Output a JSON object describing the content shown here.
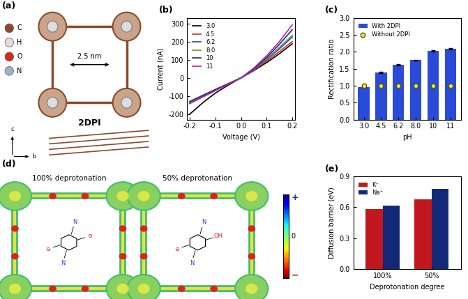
{
  "chart_data": [
    {
      "panel": "(b)",
      "type": "line",
      "x_label": "Voltage (V)",
      "y_label": "Current (nA)",
      "x": [
        -0.2,
        -0.15,
        -0.1,
        -0.05,
        0.0,
        0.05,
        0.1,
        0.15,
        0.2
      ],
      "series": [
        {
          "name": "3.0",
          "color": "#000000",
          "values": [
            -200,
            -138,
            -84,
            -40,
            0,
            40,
            84,
            133,
            188
          ]
        },
        {
          "name": "4.5",
          "color": "#e02020",
          "values": [
            -140,
            -105,
            -70,
            -35,
            0,
            42,
            92,
            145,
            200
          ]
        },
        {
          "name": "6.2",
          "color": "#2040e0",
          "values": [
            -138,
            -103,
            -68,
            -34,
            0,
            45,
            100,
            160,
            225
          ]
        },
        {
          "name": "8.0",
          "color": "#6a9a20",
          "values": [
            -135,
            -100,
            -66,
            -33,
            0,
            47,
            104,
            168,
            235
          ]
        },
        {
          "name": "10",
          "color": "#1a237e",
          "values": [
            -130,
            -97,
            -64,
            -32,
            0,
            50,
            112,
            185,
            265
          ]
        },
        {
          "name": "11",
          "color": "#b020b0",
          "values": [
            -142,
            -106,
            -70,
            -34,
            0,
            54,
            122,
            200,
            292
          ]
        }
      ],
      "xlim": [
        -0.21,
        0.21
      ],
      "xticks": [
        -0.2,
        -0.1,
        0.0,
        0.1,
        0.2
      ],
      "ylim": [
        -230,
        330
      ],
      "yticks": [
        -200,
        -100,
        0,
        100,
        200,
        300
      ],
      "legend": "upper left"
    },
    {
      "panel": "(c)",
      "type": "bar",
      "x_label": "pH",
      "y_label": "Rectification ratio",
      "categories": [
        "3.0",
        "4.5",
        "6.2",
        "8.0",
        "10",
        "11"
      ],
      "series": [
        {
          "name": "With 2DPI",
          "type": "bar",
          "color": "#2a4bd7",
          "values": [
            0.95,
            1.39,
            1.61,
            1.76,
            2.02,
            2.08
          ],
          "errors": [
            0.0,
            0.02,
            0.02,
            0.01,
            0.02,
            0.02
          ]
        },
        {
          "name": "Without 2DPI",
          "type": "scatter",
          "color": "#f0e63c",
          "marker": "o",
          "values": [
            1.0,
            1.0,
            1.0,
            1.0,
            1.0,
            1.0
          ]
        }
      ],
      "ylim": [
        0.0,
        3.0
      ],
      "yticks": [
        0.0,
        0.5,
        1.0,
        1.5,
        2.0,
        2.5,
        3.0
      ],
      "legend": "upper left"
    },
    {
      "panel": "(e)",
      "type": "bar",
      "x_label": "Deprotonation degree",
      "y_label": "Diffusion barrier (eV)",
      "categories": [
        "100%",
        "50%"
      ],
      "series": [
        {
          "name": "K⁺",
          "type": "bar",
          "color": "#c0181e",
          "values": [
            0.585,
            0.675
          ]
        },
        {
          "name": "Na⁺",
          "type": "bar",
          "color": "#14287a",
          "values": [
            0.615,
            0.78
          ]
        }
      ],
      "ylim": [
        0.0,
        0.9
      ],
      "yticks": [
        0.0,
        0.3,
        0.6,
        0.9
      ],
      "legend": "upper left"
    }
  ],
  "diagrams": {
    "a": {
      "panel": "(a)",
      "title": "2DPI",
      "distance": "2.5 nm",
      "atoms": [
        {
          "label": "C",
          "color": "#8b4a2b"
        },
        {
          "label": "H",
          "color": "#e6dada"
        },
        {
          "label": "O",
          "color": "#d42a1a"
        },
        {
          "label": "N",
          "color": "#9fb3c8"
        }
      ],
      "axes_labels": [
        "c",
        "b"
      ]
    },
    "d": {
      "panel": "(d)",
      "views": [
        {
          "title": "100% deprotonation",
          "groups": [
            "N",
            "N",
            "⊖",
            "⊖"
          ]
        },
        {
          "title": "50% deprotonation",
          "groups": [
            "N",
            "N",
            "OH",
            "⊖"
          ]
        }
      ],
      "colorbar": [
        "+",
        "0",
        "−"
      ]
    }
  }
}
